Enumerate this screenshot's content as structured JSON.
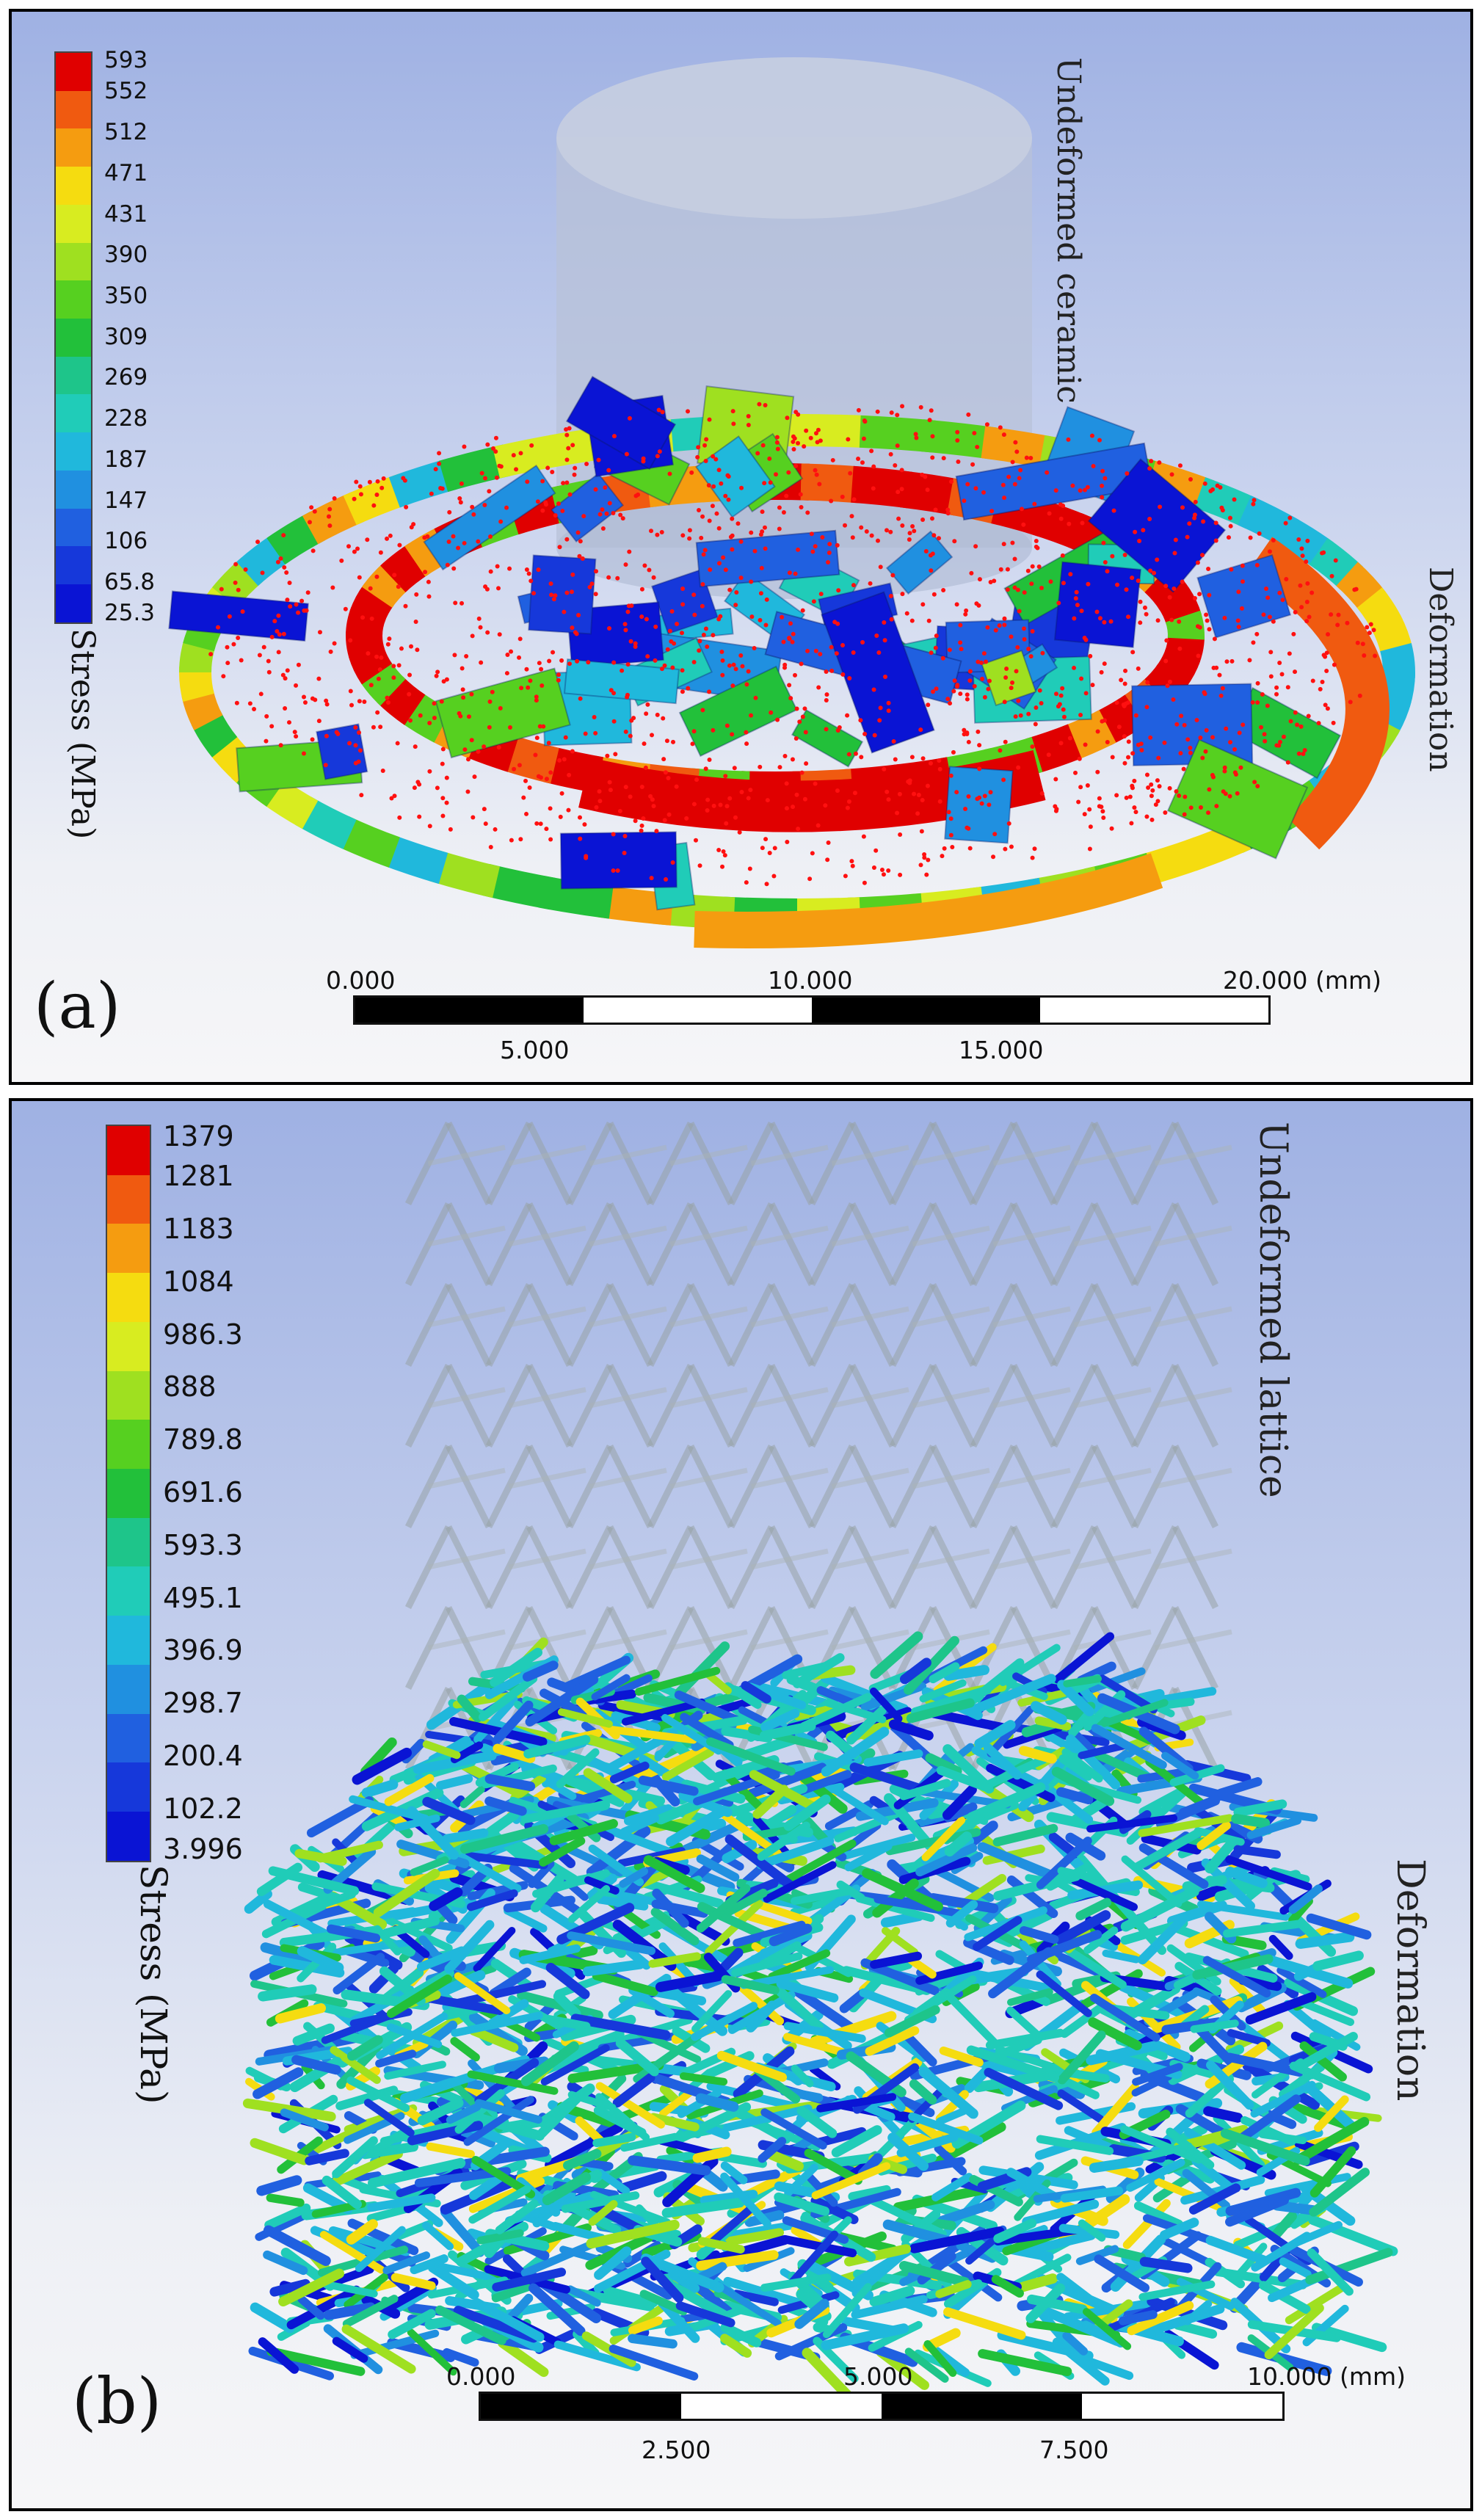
{
  "panel_a": {
    "letter": "(a)",
    "legend_title": "Stress (MPa)",
    "legend_ticks": [
      "593",
      "552",
      "512",
      "471",
      "431",
      "390",
      "350",
      "309",
      "269",
      "228",
      "187",
      "147",
      "106",
      "65.8",
      "25.3"
    ],
    "legend_colors": [
      "#e00000",
      "#f05a10",
      "#f59c10",
      "#f5dc10",
      "#d8ec20",
      "#9fe020",
      "#56d020",
      "#22c03a",
      "#1ec58a",
      "#20ccb8",
      "#20b8dc",
      "#2090e0",
      "#2060e0",
      "#1638da",
      "#0a14d4"
    ],
    "label_undeformed": "Undeformed ceramic",
    "label_deformation": "Deformation",
    "scale_top_labels": [
      "0.000",
      "10.000",
      "20.000 (mm)"
    ],
    "scale_bottom_labels": [
      "5.000",
      "15.000"
    ]
  },
  "panel_b": {
    "letter": "(b)",
    "legend_title": "Stress (MPa)",
    "legend_ticks": [
      "1379",
      "1281",
      "1183",
      "1084",
      "986.3",
      "888",
      "789.8",
      "691.6",
      "593.3",
      "495.1",
      "396.9",
      "298.7",
      "200.4",
      "102.2",
      "3.996"
    ],
    "legend_colors": [
      "#e00000",
      "#f05a10",
      "#f59c10",
      "#f5dc10",
      "#d8ec20",
      "#9fe020",
      "#56d020",
      "#22c03a",
      "#1ec58a",
      "#20ccb8",
      "#20b8dc",
      "#2090e0",
      "#2060e0",
      "#1638da",
      "#0a14d4"
    ],
    "label_undeformed": "Undeformed lattice",
    "label_deformation": "Deformation",
    "scale_top_labels": [
      "0.000",
      "5.000",
      "10.000 (mm)"
    ],
    "scale_bottom_labels": [
      "2.500",
      "7.500"
    ]
  }
}
